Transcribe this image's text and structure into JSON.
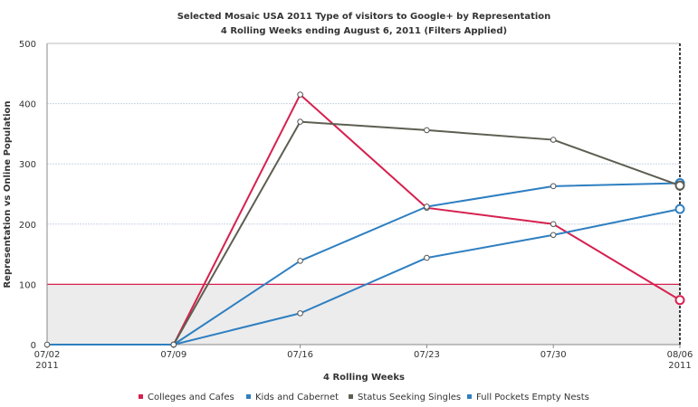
{
  "chart_data": {
    "type": "line",
    "title": "Selected Mosaic USA 2011 Type of visitors to Google+ by Representation",
    "subtitle": "4 Rolling Weeks ending August 6, 2011 (Filters Applied)",
    "xlabel": "4 Rolling Weeks",
    "ylabel": "Representation vs Online Population",
    "categories": [
      "07/02",
      "07/09",
      "07/16",
      "07/23",
      "07/30",
      "08/06"
    ],
    "category_sublabels": [
      "2011",
      "",
      "",
      "",
      "",
      "2011"
    ],
    "ylim": [
      0,
      500
    ],
    "yticks": [
      0,
      100,
      200,
      300,
      400,
      500
    ],
    "reference_line": 100,
    "shaded_band": [
      0,
      100
    ],
    "grid": true,
    "legend_position": "bottom",
    "series": [
      {
        "name": "Colleges and Cafes",
        "color": "#d6214f",
        "values": [
          null,
          0,
          415,
          227,
          200,
          74
        ]
      },
      {
        "name": "Kids and Cabernet",
        "color": "#2e7fc1",
        "values": [
          0,
          0,
          139,
          229,
          263,
          268
        ]
      },
      {
        "name": "Status Seeking Singles",
        "color": "#5e5e52",
        "values": [
          null,
          0,
          370,
          356,
          340,
          264
        ]
      },
      {
        "name": "Full Pockets  Empty Nests",
        "color": "#2e7fc1",
        "values": [
          null,
          0,
          52,
          144,
          182,
          225
        ]
      }
    ]
  }
}
